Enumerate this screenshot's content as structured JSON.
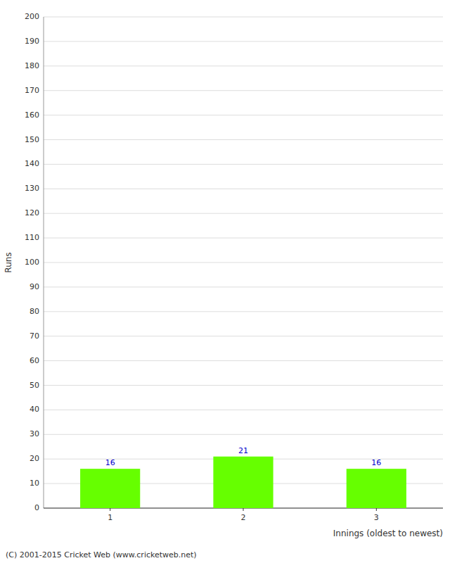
{
  "chart_data": {
    "type": "bar",
    "categories": [
      "1",
      "2",
      "3"
    ],
    "values": [
      16,
      21,
      16
    ],
    "color": "#66ff00",
    "xlabel": "Innings (oldest to newest)",
    "ylabel": "Runs",
    "ylim": [
      0,
      200
    ],
    "yticks": [
      0,
      10,
      20,
      30,
      40,
      50,
      60,
      70,
      80,
      90,
      100,
      110,
      120,
      130,
      140,
      150,
      160,
      170,
      180,
      190,
      200
    ],
    "grid": true,
    "data_labels": true,
    "annotations": [
      "(C) 2001-2015 Cricket Web (www.cricketweb.net)"
    ]
  }
}
